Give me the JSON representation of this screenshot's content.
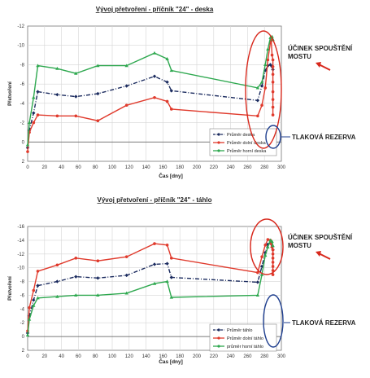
{
  "chart_data": [
    {
      "type": "line",
      "title": "Vývoj přetvoření - příčník \"24\" - deska",
      "xlabel": "Čas [dny]",
      "ylabel": "Přetvoření",
      "xlim": [
        0,
        300
      ],
      "ylim": [
        2,
        -12
      ],
      "xticks": [
        "0",
        "20",
        "40",
        "60",
        "80",
        "100",
        "120",
        "140",
        "160",
        "180",
        "200",
        "220",
        "240",
        "260",
        "280",
        "300"
      ],
      "yticks": [
        "2",
        "0",
        "-2",
        "-4",
        "-6",
        "-8",
        "-10",
        "-12"
      ],
      "grid": true,
      "legend_position": "lower-right",
      "series": [
        {
          "name": "Průměr deska",
          "color": "#1a2a5e",
          "dash": true,
          "marker": "diamond",
          "x": [
            0,
            2,
            7,
            12,
            35,
            57,
            83,
            117,
            150,
            165,
            170,
            272,
            277,
            281,
            284,
            287,
            289,
            290
          ],
          "y": [
            0.6,
            -1.2,
            -3.0,
            -5.2,
            -4.9,
            -4.7,
            -5.0,
            -5.8,
            -6.8,
            -6.2,
            -5.3,
            -4.3,
            -5.8,
            -7.4,
            -7.9,
            -8.0,
            -7.8,
            -7.5
          ]
        },
        {
          "name": "Průměr dolní deska",
          "color": "#e03a2c",
          "dash": false,
          "marker": "circle",
          "x": [
            0,
            2,
            7,
            12,
            35,
            57,
            83,
            117,
            150,
            165,
            170,
            272,
            277,
            281,
            284,
            287,
            288,
            289,
            290,
            290,
            290,
            290,
            290,
            290,
            290,
            290
          ],
          "y": [
            1.0,
            -1.0,
            -2.0,
            -2.8,
            -2.7,
            -2.7,
            -2.2,
            -3.8,
            -4.6,
            -4.2,
            -3.4,
            -2.7,
            -3.8,
            -5.6,
            -8.5,
            -10.3,
            -10.5,
            -9.0,
            -8.5,
            -7.8,
            -7.0,
            -6.2,
            -5.2,
            -4.4,
            -3.6,
            -2.8
          ]
        },
        {
          "name": "Průměr horní deska",
          "color": "#2ea84f",
          "dash": false,
          "marker": "triangle",
          "x": [
            0,
            2,
            7,
            12,
            35,
            57,
            83,
            117,
            150,
            165,
            170,
            272,
            277,
            281,
            284,
            287,
            289,
            290
          ],
          "y": [
            0.3,
            -2.0,
            -4.6,
            -7.9,
            -7.6,
            -7.1,
            -7.9,
            -7.9,
            -9.2,
            -8.6,
            -7.4,
            -5.6,
            -6.2,
            -8.0,
            -9.6,
            -10.8,
            -10.9,
            -10.6
          ]
        }
      ],
      "annotations": [
        "ÚČINEK SPOUŠTĚNÍ MOSTU",
        "TLAKOVÁ REZERVA"
      ]
    },
    {
      "type": "line",
      "title": "Vývoj přetvoření - příčník \"24\" - táhlo",
      "xlabel": "Čas [dny]",
      "ylabel": "Přetvoření",
      "xlim": [
        0,
        300
      ],
      "ylim": [
        2,
        -16
      ],
      "xticks": [
        "0",
        "20",
        "40",
        "60",
        "80",
        "100",
        "120",
        "140",
        "160",
        "180",
        "200",
        "220",
        "240",
        "260",
        "280",
        "300"
      ],
      "yticks": [
        "2",
        "0",
        "-2",
        "-4",
        "-6",
        "-8",
        "-10",
        "-12",
        "-14",
        "-16"
      ],
      "grid": true,
      "legend_position": "lower-right",
      "series": [
        {
          "name": "Průměr táhlo",
          "color": "#1a2a5e",
          "dash": true,
          "marker": "diamond",
          "x": [
            0,
            2,
            7,
            12,
            35,
            57,
            83,
            117,
            150,
            165,
            170,
            272,
            277,
            281,
            284,
            287,
            289,
            290
          ],
          "y": [
            -0.5,
            -3.0,
            -5.3,
            -7.4,
            -8.0,
            -8.7,
            -8.5,
            -8.9,
            -10.5,
            -10.6,
            -8.6,
            -7.9,
            -10.2,
            -12.2,
            -13.4,
            -13.6,
            -13.0,
            -12.6
          ]
        },
        {
          "name": "Průměr dolní táhlo",
          "color": "#e03a2c",
          "dash": false,
          "marker": "circle",
          "x": [
            0,
            2,
            7,
            12,
            35,
            57,
            83,
            117,
            150,
            165,
            170,
            272,
            277,
            281,
            284,
            287,
            288,
            289,
            290,
            290,
            290,
            290,
            290,
            290,
            290
          ],
          "y": [
            -0.8,
            -4.2,
            -6.7,
            -9.5,
            -10.4,
            -11.4,
            -11.0,
            -11.6,
            -13.5,
            -13.3,
            -11.4,
            -9.3,
            -11.6,
            -13.3,
            -14.1,
            -14.0,
            -13.5,
            -13.0,
            -12.6,
            -12.0,
            -11.4,
            -10.8,
            -10.2,
            -9.6,
            -9.0
          ]
        },
        {
          "name": "průměr horní táhlo",
          "color": "#2ea84f",
          "dash": false,
          "marker": "triangle",
          "x": [
            0,
            2,
            7,
            12,
            35,
            57,
            83,
            117,
            150,
            165,
            170,
            272,
            277,
            281,
            284,
            287,
            289,
            290
          ],
          "y": [
            -0.2,
            -2.5,
            -4.5,
            -5.6,
            -5.8,
            -6.0,
            -6.0,
            -6.3,
            -7.7,
            -8.0,
            -5.7,
            -6.0,
            -9.0,
            -11.8,
            -13.0,
            -14.0,
            -13.8,
            -13.2
          ]
        }
      ],
      "annotations": [
        "ÚČINEK SPOUŠTĚNÍ MOSTU",
        "TLAKOVÁ REZERVA"
      ]
    }
  ]
}
